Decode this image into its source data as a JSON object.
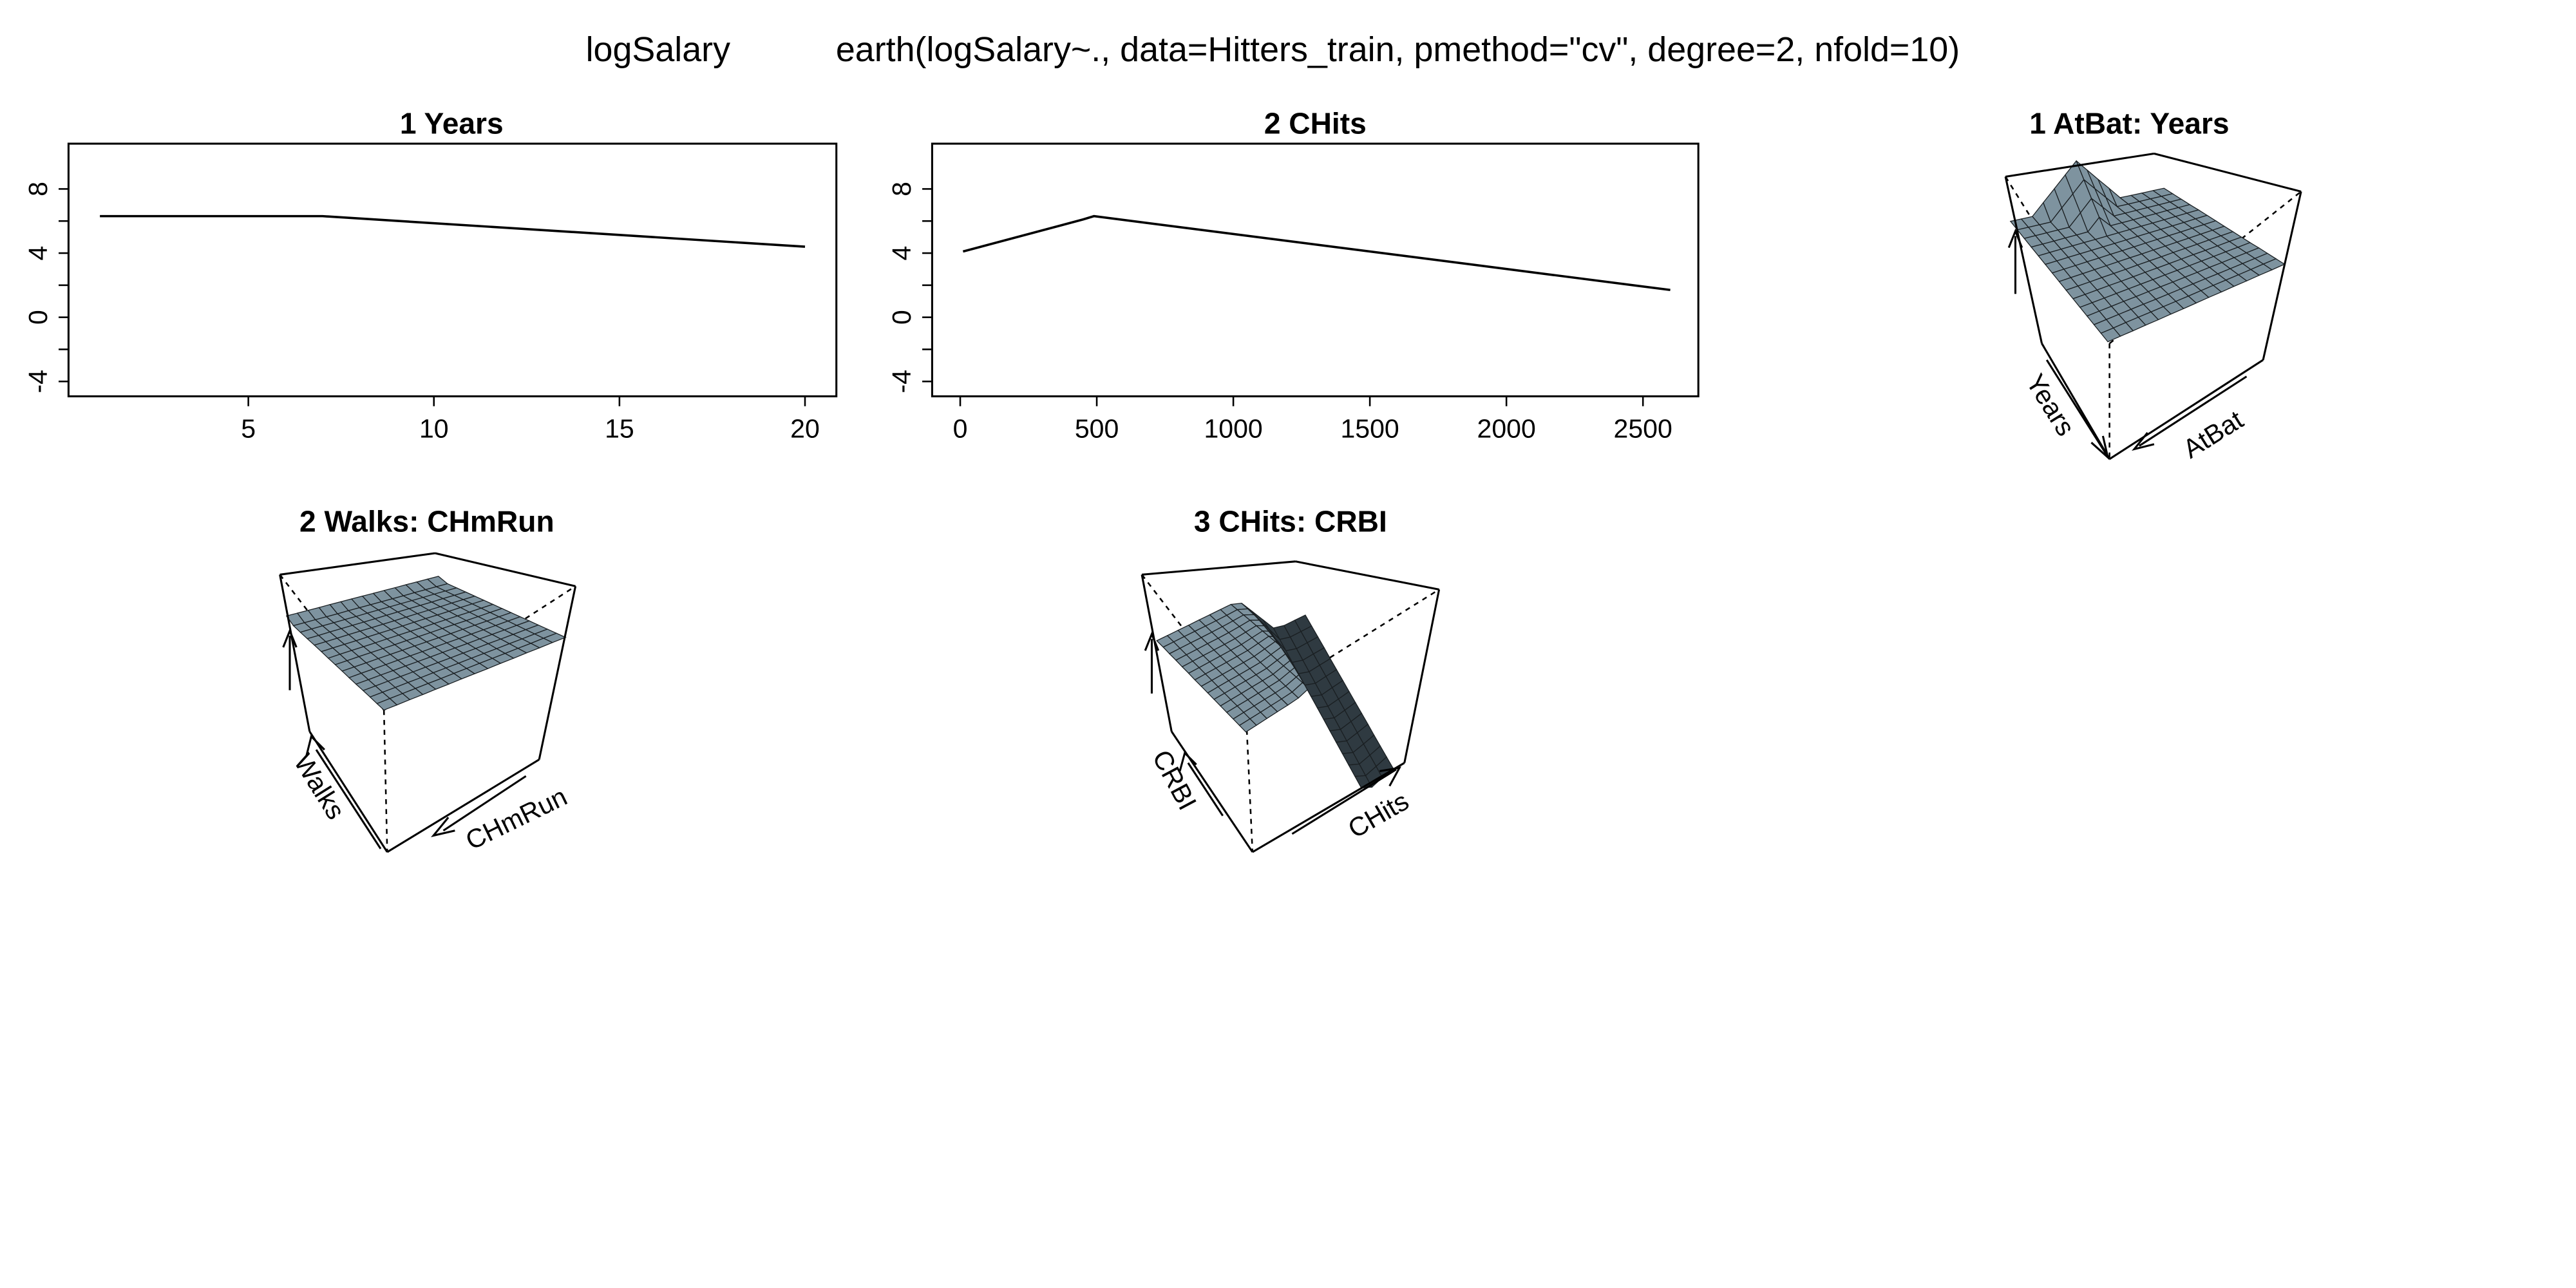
{
  "header": {
    "response": "logSalary",
    "call": "earth(logSalary~., data=Hitters_train, pmethod=\"cv\", degree=2, nfold=10)"
  },
  "colors": {
    "line": "#000000",
    "surface": "#7e939f",
    "surface_dark": "#2f3a41",
    "background": "#ffffff"
  },
  "chart_data": [
    {
      "type": "line",
      "title": "1  Years",
      "xlim": [
        1,
        20
      ],
      "ylim": [
        -4,
        10
      ],
      "x_ticks": [
        "5",
        "10",
        "15",
        "20"
      ],
      "y_ticks": [
        "-4",
        "0",
        "4",
        "8"
      ],
      "x": [
        1,
        7,
        20
      ],
      "y": [
        6.3,
        6.3,
        4.4
      ],
      "grid": false
    },
    {
      "type": "line",
      "title": "2  CHits",
      "xlim": [
        0,
        2600
      ],
      "ylim": [
        -4,
        10
      ],
      "x_ticks": [
        "0",
        "500",
        "1000",
        "1500",
        "2000",
        "2500"
      ],
      "y_ticks": [
        "-4",
        "0",
        "4",
        "8"
      ],
      "x": [
        10,
        450,
        490,
        2600
      ],
      "y": [
        4.1,
        6.1,
        6.3,
        1.7
      ],
      "grid": false
    },
    {
      "type": "surface",
      "title": "1 AtBat: Years",
      "xlabel": "AtBat",
      "ylabel": "Years",
      "shape": "flat-with-peak"
    },
    {
      "type": "surface",
      "title": "2 Walks: CHmRun",
      "xlabel": "CHmRun",
      "ylabel": "Walks",
      "shape": "flat-gentle-tilt"
    },
    {
      "type": "surface",
      "title": "3 CHits: CRBI",
      "xlabel": "CHits",
      "ylabel": "CRBI",
      "shape": "ridge-then-drop"
    }
  ]
}
